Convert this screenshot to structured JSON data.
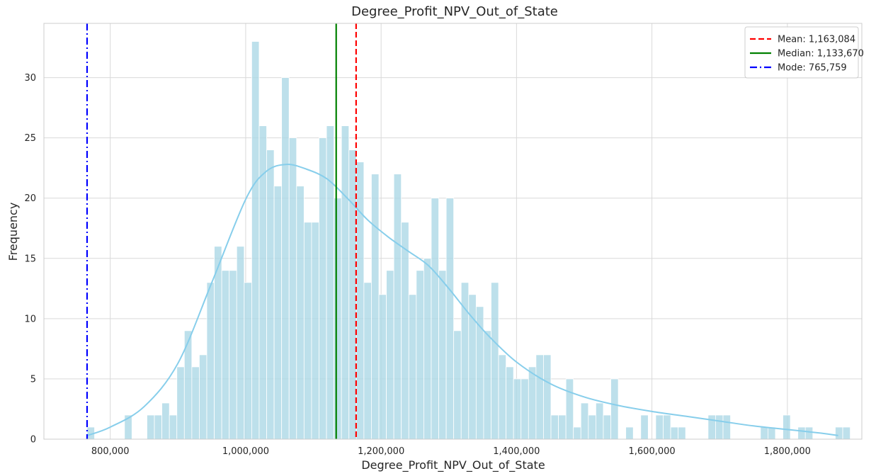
{
  "chart_data": {
    "type": "histogram",
    "title": "Degree_Profit_NPV_Out_of_State",
    "xlabel": "Degree_Profit_NPV_Out_of_State",
    "ylabel": "Frequency",
    "xlim": [
      702000,
      1910000
    ],
    "ylim": [
      0,
      34.5
    ],
    "x_ticks": [
      800000,
      1000000,
      1200000,
      1400000,
      1600000,
      1800000
    ],
    "x_tick_labels": [
      "800,000",
      "1,000,000",
      "1,200,000",
      "1,400,000",
      "1,600,000",
      "1,800,000"
    ],
    "y_ticks": [
      0,
      5,
      10,
      15,
      20,
      25,
      30
    ],
    "y_tick_labels": [
      "0",
      "5",
      "10",
      "15",
      "20",
      "25",
      "30"
    ],
    "grid": true,
    "bins": {
      "start": 765759,
      "width": 11050,
      "counts": [
        1,
        0,
        0,
        0,
        0,
        2,
        0,
        0,
        2,
        2,
        3,
        2,
        6,
        9,
        6,
        7,
        13,
        16,
        14,
        14,
        16,
        13,
        33,
        26,
        24,
        21,
        30,
        25,
        21,
        18,
        18,
        25,
        26,
        20,
        26,
        24,
        23,
        13,
        22,
        12,
        14,
        22,
        18,
        12,
        14,
        15,
        20,
        14,
        20,
        9,
        13,
        12,
        11,
        9,
        13,
        7,
        6,
        5,
        5,
        6,
        7,
        7,
        2,
        2,
        5,
        1,
        3,
        2,
        3,
        2,
        5,
        0,
        1,
        0,
        2,
        0,
        2,
        2,
        1,
        1,
        0,
        0,
        0,
        2,
        2,
        2,
        0,
        0,
        0,
        0,
        1,
        1,
        0,
        2,
        0,
        1,
        1,
        0,
        0,
        0,
        1,
        1
      ]
    },
    "kde": {
      "color": "#87ceeb",
      "x": [
        765759,
        800000,
        850000,
        900000,
        950000,
        1000000,
        1030000,
        1060000,
        1090000,
        1120000,
        1150000,
        1180000,
        1210000,
        1240000,
        1270000,
        1300000,
        1330000,
        1360000,
        1400000,
        1450000,
        1500000,
        1550000,
        1600000,
        1650000,
        1700000,
        1750000,
        1800000,
        1850000,
        1875000
      ],
      "y": [
        0.3,
        1.0,
        2.7,
        6.3,
        13.0,
        19.9,
        22.2,
        22.8,
        22.4,
        21.6,
        20.0,
        18.2,
        16.8,
        15.6,
        14.4,
        12.5,
        10.4,
        8.5,
        6.4,
        4.6,
        3.5,
        2.8,
        2.3,
        1.9,
        1.5,
        1.1,
        0.8,
        0.5,
        0.3
      ]
    },
    "bar_color": "#add8e6",
    "lines": [
      {
        "label": "Mean: 1,163,084",
        "value": 1163084,
        "color": "#ff0000",
        "style": "dashed"
      },
      {
        "label": "Median: 1,133,670",
        "value": 1133670,
        "color": "#008000",
        "style": "solid"
      },
      {
        "label": "Mode: 765,759",
        "value": 765759,
        "color": "#0000ff",
        "style": "dashdot"
      }
    ],
    "legend_position": "top-right"
  }
}
